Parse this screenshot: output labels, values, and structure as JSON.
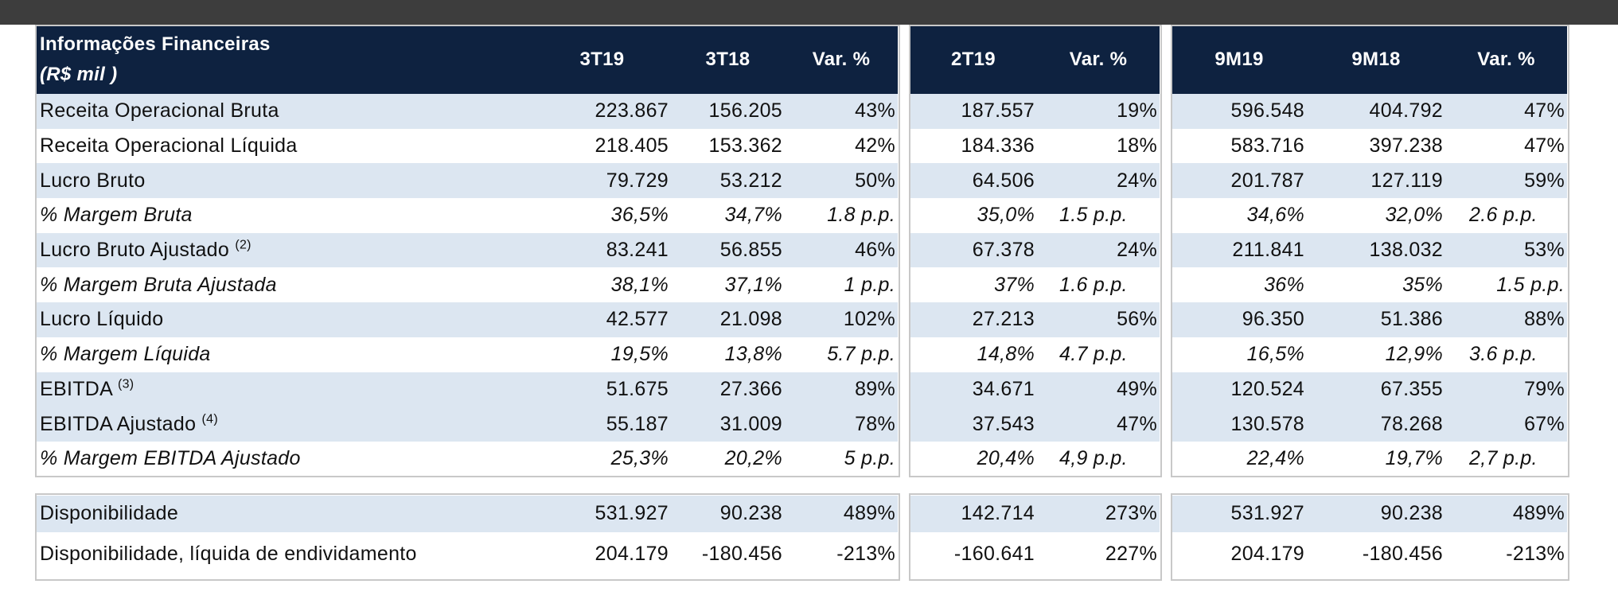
{
  "header": {
    "title_line1": "Informações Financeiras",
    "title_line2": "(R$ mil )",
    "columns": [
      "3T19",
      "3T18",
      "Var. %",
      "2T19",
      "Var. %",
      "9M19",
      "9M18",
      "Var. %"
    ]
  },
  "rows": [
    {
      "label": "Receita Operacional Bruta",
      "sup": "",
      "values": [
        "223.867",
        "156.205",
        "43%",
        "187.557",
        "19%",
        "596.548",
        "404.792",
        "47%"
      ]
    },
    {
      "label": "Receita Operacional Líquida",
      "sup": "",
      "values": [
        "218.405",
        "153.362",
        "42%",
        "184.336",
        "18%",
        "583.716",
        "397.238",
        "47%"
      ]
    },
    {
      "label": "Lucro Bruto",
      "sup": "",
      "values": [
        "79.729",
        "53.212",
        "50%",
        "64.506",
        "24%",
        "201.787",
        "127.119",
        "59%"
      ]
    },
    {
      "label": "% Margem Bruta",
      "sup": "",
      "values": [
        "36,5%",
        "34,7%",
        "1.8 p.p.",
        "35,0%",
        "1.5 p.p.",
        "34,6%",
        "32,0%",
        "2.6 p.p."
      ]
    },
    {
      "label": "Lucro Bruto Ajustado",
      "sup": "(2)",
      "values": [
        "83.241",
        "56.855",
        "46%",
        "67.378",
        "24%",
        "211.841",
        "138.032",
        "53%"
      ]
    },
    {
      "label": "% Margem Bruta Ajustada",
      "sup": "",
      "values": [
        "38,1%",
        "37,1%",
        "1 p.p.",
        "37%",
        "1.6 p.p.",
        "36%",
        "35%",
        "1.5 p.p."
      ]
    },
    {
      "label": "Lucro Líquido",
      "sup": "",
      "values": [
        "42.577",
        "21.098",
        "102%",
        "27.213",
        "56%",
        "96.350",
        "51.386",
        "88%"
      ]
    },
    {
      "label": "% Margem Líquida",
      "sup": "",
      "values": [
        "19,5%",
        "13,8%",
        "5.7 p.p.",
        "14,8%",
        "4.7 p.p.",
        "16,5%",
        "12,9%",
        "3.6 p.p."
      ]
    },
    {
      "label": "EBITDA",
      "sup": "(3)",
      "values": [
        "51.675",
        "27.366",
        "89%",
        "34.671",
        "49%",
        "120.524",
        "67.355",
        "79%"
      ]
    },
    {
      "label": "EBITDA Ajustado",
      "sup": "(4)",
      "values": [
        "55.187",
        "31.009",
        "78%",
        "37.543",
        "47%",
        "130.578",
        "78.268",
        "67%"
      ]
    },
    {
      "label": "% Margem EBITDA Ajustado",
      "sup": "",
      "values": [
        "25,3%",
        "20,2%",
        "5 p.p.",
        "20,4%",
        "4,9 p.p.",
        "22,4%",
        "19,7%",
        "2,7 p.p."
      ]
    }
  ],
  "bottom_rows": [
    {
      "label": "Disponibilidade",
      "values": [
        "531.927",
        "90.238",
        "489%",
        "142.714",
        "273%",
        "531.927",
        "90.238",
        "489%"
      ]
    },
    {
      "label": "Disponibilidade, líquida de endividamento",
      "values": [
        "204.179",
        "-180.456",
        "-213%",
        "-160.641",
        "227%",
        "204.179",
        "-180.456",
        "-213%"
      ]
    }
  ]
}
